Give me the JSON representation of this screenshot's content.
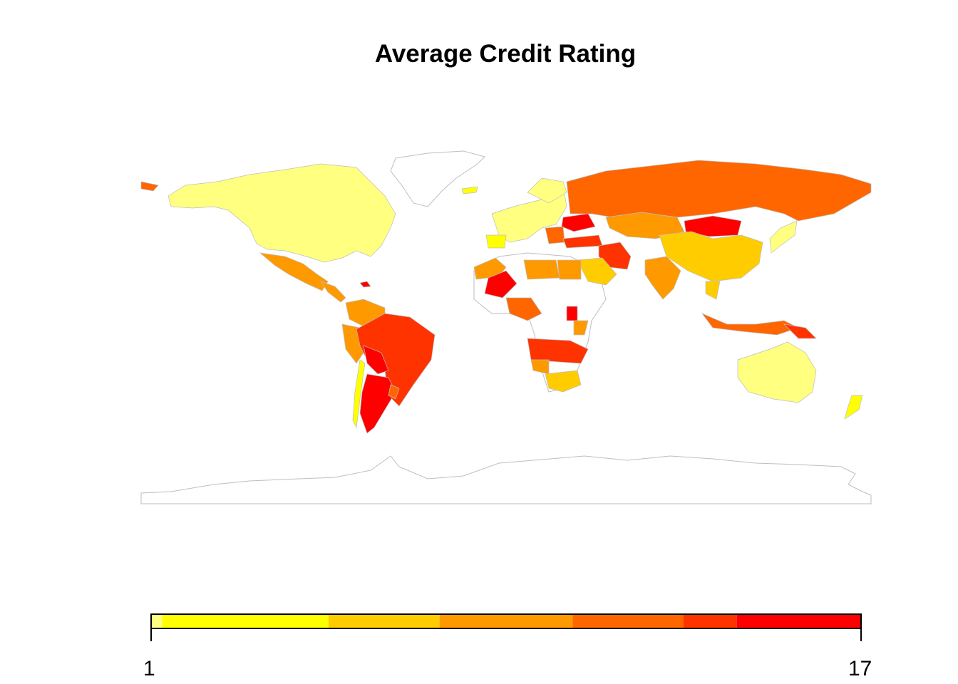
{
  "title": "Average Credit Rating",
  "legend": {
    "min_label": "1",
    "max_label": "17",
    "min": 1,
    "max": 17,
    "bins": [
      {
        "from": 1,
        "to": 1.25,
        "color": "#FFFF80"
      },
      {
        "from": 1.25,
        "to": 5,
        "color": "#FFFF00"
      },
      {
        "from": 5,
        "to": 7.5,
        "color": "#FFCC00"
      },
      {
        "from": 7.5,
        "to": 10.5,
        "color": "#FF9900"
      },
      {
        "from": 10.5,
        "to": 13,
        "color": "#FF6600"
      },
      {
        "from": 13,
        "to": 14.2,
        "color": "#FF3300"
      },
      {
        "from": 14.2,
        "to": 17,
        "color": "#FF0000"
      }
    ]
  },
  "colors": {
    "land_no_data": "#FFFFFF",
    "border": "#BEBEBE",
    "axis": "#000000"
  }
}
